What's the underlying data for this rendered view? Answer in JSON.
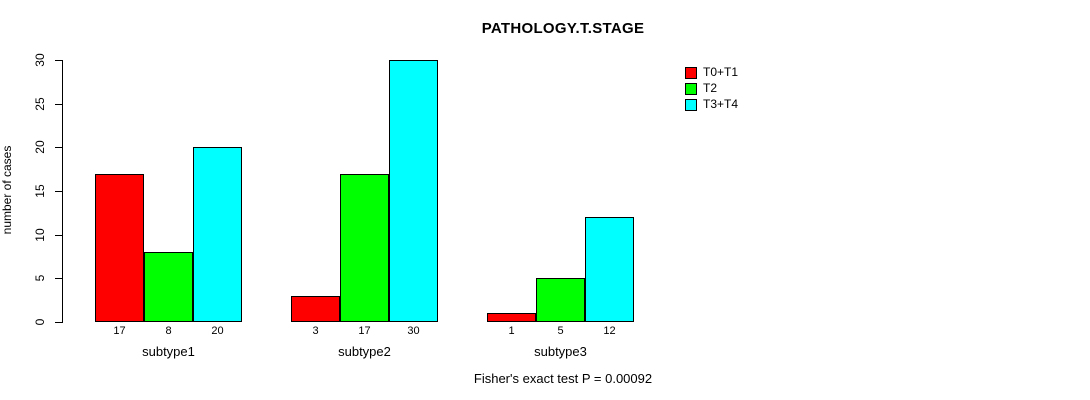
{
  "chart_data": {
    "type": "bar",
    "title": "PATHOLOGY.T.STAGE",
    "xlabel": "",
    "ylabel": "number of cases",
    "categories": [
      "subtype1",
      "subtype2",
      "subtype3"
    ],
    "series": [
      {
        "name": "T0+T1",
        "color": "#ff0000",
        "values": [
          17,
          3,
          1
        ]
      },
      {
        "name": "T2",
        "color": "#00ff00",
        "values": [
          8,
          17,
          5
        ]
      },
      {
        "name": "T3+T4",
        "color": "#00ffff",
        "values": [
          20,
          30,
          12
        ]
      }
    ],
    "ylim": [
      0,
      30
    ],
    "yticks": [
      0,
      5,
      10,
      15,
      20,
      25,
      30
    ],
    "bar_value_labels": {
      "subtype1": [
        "17",
        "8",
        "20"
      ],
      "subtype2": [
        "3",
        "17",
        "30"
      ],
      "subtype3": [
        "1",
        "5",
        "12"
      ]
    },
    "grid": false,
    "legend_position": "top-right",
    "annotation": "Fisher's exact test P = 0.00092"
  },
  "colors": {
    "axis": "#000000",
    "text": "#000000",
    "background": "#ffffff"
  }
}
